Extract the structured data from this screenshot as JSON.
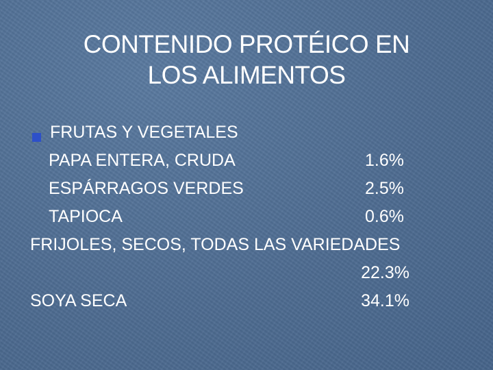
{
  "slide": {
    "title_line1": "CONTENIDO PROTÉICO EN",
    "title_line2": "LOS ALIMENTOS",
    "section_heading": "FRUTAS Y VEGETALES",
    "items": [
      {
        "name": "PAPA ENTERA, CRUDA",
        "value": "1.6%"
      },
      {
        "name": "ESPÁRRAGOS VERDES",
        "value": "2.5%"
      },
      {
        "name": "TAPIOCA",
        "value": "0.6%"
      },
      {
        "name": "FRIJOLES, SECOS, TODAS LAS VARIEDADES",
        "value": "22.3%"
      },
      {
        "name": "SOYA SECA",
        "value": "34.1%"
      }
    ]
  },
  "colors": {
    "background": "#4f6e93",
    "text": "#ffffff",
    "bullet": "#2d50c9"
  },
  "icons": {
    "bullet": "square-bullet-icon"
  }
}
